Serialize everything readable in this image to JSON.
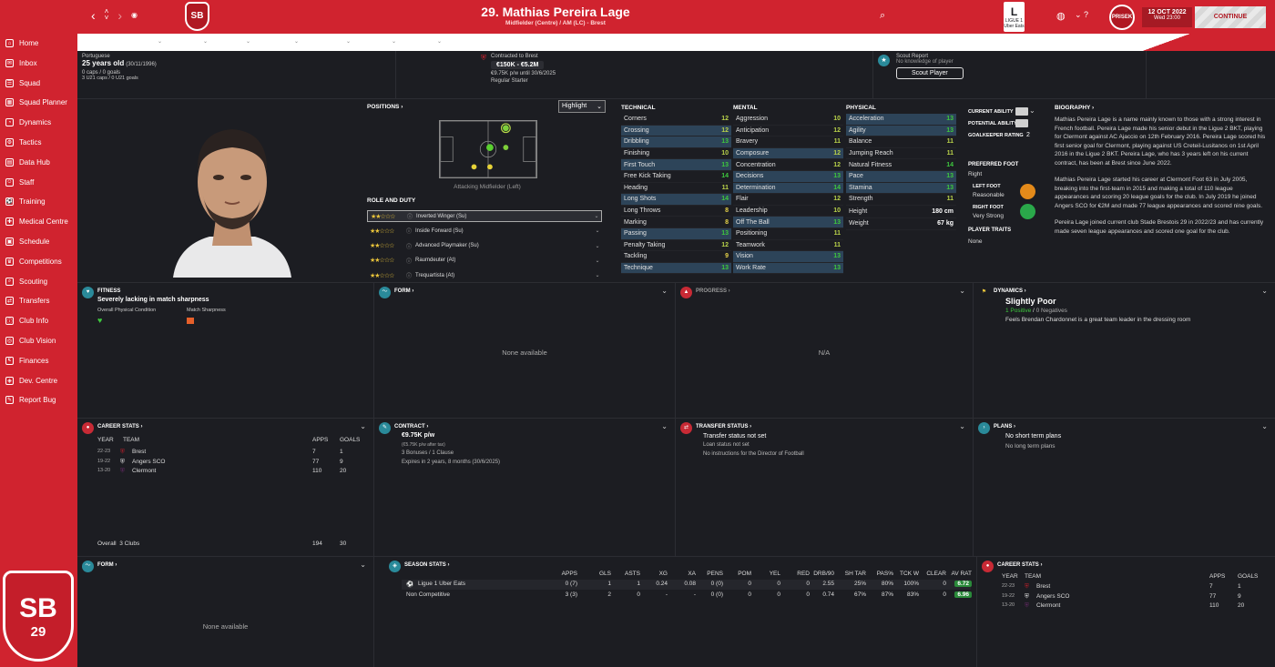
{
  "topbar": {
    "title": "29. Mathias Pereira Lage",
    "subtitle": "Midfielder (Centre) / AM (LC) - Brest",
    "club_short": "SB",
    "league": "LIGUE 1 Uber Eats",
    "manager": "PRISEK",
    "date": "12 OCT 2022",
    "time": "Wed 23:00",
    "continue": "CONTINUE",
    "accent": "#d0232f"
  },
  "sidebar": {
    "items": [
      "Home",
      "Inbox",
      "Squad",
      "Squad Planner",
      "Dynamics",
      "Tactics",
      "Data Hub",
      "Staff",
      "Training",
      "Medical Centre",
      "Schedule",
      "Competitions",
      "Scouting",
      "Transfers",
      "Club Info",
      "Club Vision",
      "Finances",
      "Dev. Centre",
      "Report Bug"
    ],
    "crest_text": "SB",
    "crest_num": "29"
  },
  "header": {
    "nationality": "Portuguese",
    "age": "25 years old",
    "dob": "(30/11/1996)",
    "caps": "0 caps / 0 goals",
    "u21": "3 U21 caps / 0 U21 goals",
    "contracted_to": "Contracted to Brest",
    "value": "€150K - €5.2M",
    "wage": "€9.75K p/w until 30/6/2025",
    "status": "Regular Starter",
    "scout_title": "Scout Report",
    "scout_sub": "No knowledge of player",
    "scout_button": "Scout Player"
  },
  "positions": {
    "title": "POSITIONS",
    "highlight": "Highlight",
    "label": "Attacking Midfielder (Left)",
    "role_title": "ROLE AND DUTY",
    "roles": [
      {
        "stars": "★★☆☆☆",
        "name": "Inverted Winger (Su)"
      },
      {
        "stars": "★★☆☆☆",
        "name": "Inside Forward (Su)"
      },
      {
        "stars": "★★☆☆☆",
        "name": "Advanced Playmaker (Su)"
      },
      {
        "stars": "★★☆☆☆",
        "name": "Raumdeuter (At)"
      },
      {
        "stars": "★★☆☆☆",
        "name": "Trequartista (At)"
      }
    ]
  },
  "attributes": {
    "technical_title": "TECHNICAL",
    "mental_title": "MENTAL",
    "physical_title": "PHYSICAL",
    "technical": [
      {
        "n": "Corners",
        "v": "12"
      },
      {
        "n": "Crossing",
        "v": "12"
      },
      {
        "n": "Dribbling",
        "v": "13"
      },
      {
        "n": "Finishing",
        "v": "10"
      },
      {
        "n": "First Touch",
        "v": "13"
      },
      {
        "n": "Free Kick Taking",
        "v": "14"
      },
      {
        "n": "Heading",
        "v": "11"
      },
      {
        "n": "Long Shots",
        "v": "14"
      },
      {
        "n": "Long Throws",
        "v": "8"
      },
      {
        "n": "Marking",
        "v": "8"
      },
      {
        "n": "Passing",
        "v": "13"
      },
      {
        "n": "Penalty Taking",
        "v": "12"
      },
      {
        "n": "Tackling",
        "v": "9"
      },
      {
        "n": "Technique",
        "v": "13"
      }
    ],
    "mental": [
      {
        "n": "Aggression",
        "v": "10"
      },
      {
        "n": "Anticipation",
        "v": "12"
      },
      {
        "n": "Bravery",
        "v": "11"
      },
      {
        "n": "Composure",
        "v": "12"
      },
      {
        "n": "Concentration",
        "v": "12"
      },
      {
        "n": "Decisions",
        "v": "13"
      },
      {
        "n": "Determination",
        "v": "14"
      },
      {
        "n": "Flair",
        "v": "12"
      },
      {
        "n": "Leadership",
        "v": "10"
      },
      {
        "n": "Off The Ball",
        "v": "13"
      },
      {
        "n": "Positioning",
        "v": "11"
      },
      {
        "n": "Teamwork",
        "v": "11"
      },
      {
        "n": "Vision",
        "v": "13"
      },
      {
        "n": "Work Rate",
        "v": "13"
      }
    ],
    "physical": [
      {
        "n": "Acceleration",
        "v": "13"
      },
      {
        "n": "Agility",
        "v": "13"
      },
      {
        "n": "Balance",
        "v": "11"
      },
      {
        "n": "Jumping Reach",
        "v": "11"
      },
      {
        "n": "Natural Fitness",
        "v": "14"
      },
      {
        "n": "Pace",
        "v": "13"
      },
      {
        "n": "Stamina",
        "v": "13"
      },
      {
        "n": "Strength",
        "v": "11"
      }
    ],
    "height_label": "Height",
    "height": "180 cm",
    "weight_label": "Weight",
    "weight": "67 kg"
  },
  "ability": {
    "current": "CURRENT ABILITY",
    "potential": "POTENTIAL ABILITY",
    "gk_rating": "GOALKEEPER RATING",
    "gk_value": "2",
    "pref_foot_title": "PREFERRED FOOT",
    "pref_foot": "Right",
    "left_foot_title": "LEFT FOOT",
    "left_foot": "Reasonable",
    "right_foot_title": "RIGHT FOOT",
    "right_foot": "Very Strong",
    "traits_title": "PLAYER TRAITS",
    "traits": "None"
  },
  "biography": {
    "title": "BIOGRAPHY",
    "p1": "Mathias Pereira Lage is a name mainly known to those with a strong interest in French football. Pereira Lage made his senior debut in the Ligue 2 BKT, playing for Clermont against AC Ajaccio on 12th February 2016. Pereira Lage scored his first senior goal for Clermont, playing against US Creteil-Lusitanos on 1st April 2016 in the Ligue 2 BKT. Pereira Lage, who has 3 years left on his current contract, has been at Brest since June 2022.",
    "p2": "Mathias Pereira Lage started his career at Clermont Foot 63 in July 2005, breaking into the first-team in 2015 and making a total of 110 league appearances and scoring 20 league goals for the club. In July 2019 he joined Angers SCO for €2M and made 77 league appearances and scored nine goals.",
    "p3": "Pereira Lage joined current club Stade Brestois 29 in 2022/23 and has currently made seven league appearances and scored one goal for the club."
  },
  "fitness": {
    "title": "FITNESS",
    "status": "Severely lacking in match sharpness",
    "opc": "Overall Physical Condition",
    "ms": "Match Sharpness"
  },
  "form": {
    "title": "FORM",
    "empty": "None available"
  },
  "progress": {
    "title": "PROGRESS",
    "empty": "N/A"
  },
  "dynamics": {
    "title": "DYNAMICS",
    "status": "Slightly Poor",
    "positives": "1 Positive",
    "negatives": "0 Negatives",
    "note": "Feels Brendan Chardonnet is a great team leader in the dressing room"
  },
  "career": {
    "title": "CAREER STATS",
    "h_year": "YEAR",
    "h_team": "TEAM",
    "h_apps": "APPS",
    "h_goals": "GOALS",
    "rows": [
      {
        "year": "22-23",
        "team": "Brest",
        "apps": "7",
        "goals": "1"
      },
      {
        "year": "19-22",
        "team": "Angers SCO",
        "apps": "77",
        "goals": "9"
      },
      {
        "year": "13-20",
        "team": "Clermont",
        "apps": "110",
        "goals": "20"
      }
    ],
    "overall_label": "Overall",
    "overall_clubs": "3 Clubs",
    "overall_apps": "194",
    "overall_goals": "30"
  },
  "contract": {
    "title": "CONTRACT",
    "wage": "€9.75K p/w",
    "after_tax": "(€5.75K p/w after tax)",
    "bonuses": "3 Bonuses / 1 Clause",
    "expires": "Expires in 2 years, 8 months (30/6/2025)"
  },
  "transfer": {
    "title": "TRANSFER STATUS",
    "status": "Transfer status not set",
    "loan": "Loan status not set",
    "instructions": "No instructions for the Director of Football"
  },
  "plans": {
    "title": "PLANS",
    "short": "No short term plans",
    "long": "No long term plans"
  },
  "season": {
    "title": "SEASON STATS",
    "headers": [
      "APPS",
      "GLS",
      "ASTS",
      "XG",
      "XA",
      "PENS",
      "POM",
      "YEL",
      "RED",
      "DRB/90",
      "SH TAR",
      "PAS%",
      "TCK W",
      "CLEAR",
      "AV RAT"
    ],
    "rows": [
      {
        "comp": "Ligue 1 Uber Eats",
        "vals": [
          "0 (7)",
          "1",
          "1",
          "0.24",
          "0.08",
          "0 (0)",
          "0",
          "0",
          "0",
          "2.55",
          "25%",
          "80%",
          "100%",
          "0",
          "6.72"
        ]
      },
      {
        "comp": "Non Competitive",
        "vals": [
          "3 (3)",
          "2",
          "0",
          "-",
          "-",
          "0 (0)",
          "0",
          "0",
          "0",
          "0.74",
          "67%",
          "87%",
          "83%",
          "0",
          "6.96"
        ]
      }
    ]
  }
}
